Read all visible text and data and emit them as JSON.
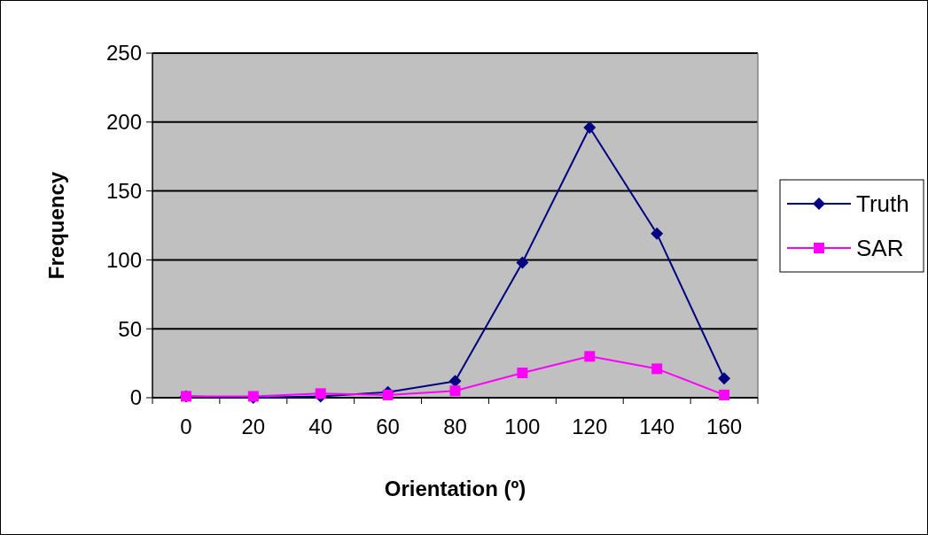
{
  "chart_data": {
    "type": "line",
    "xlabel": "Orientation (º)",
    "ylabel": "Frequency",
    "categories": [
      "0",
      "20",
      "40",
      "60",
      "80",
      "100",
      "120",
      "140",
      "160"
    ],
    "series": [
      {
        "name": "Truth",
        "color": "#000080",
        "marker": "diamond",
        "values": [
          1,
          0,
          1,
          4,
          12,
          98,
          196,
          119,
          14
        ]
      },
      {
        "name": "SAR",
        "color": "#ff00ff",
        "marker": "square",
        "values": [
          1,
          1,
          3,
          2,
          5,
          18,
          30,
          21,
          2
        ]
      }
    ],
    "ylim": [
      0,
      250
    ],
    "yticks": [
      0,
      50,
      100,
      150,
      200,
      250
    ],
    "grid": "y",
    "legend": "right"
  }
}
